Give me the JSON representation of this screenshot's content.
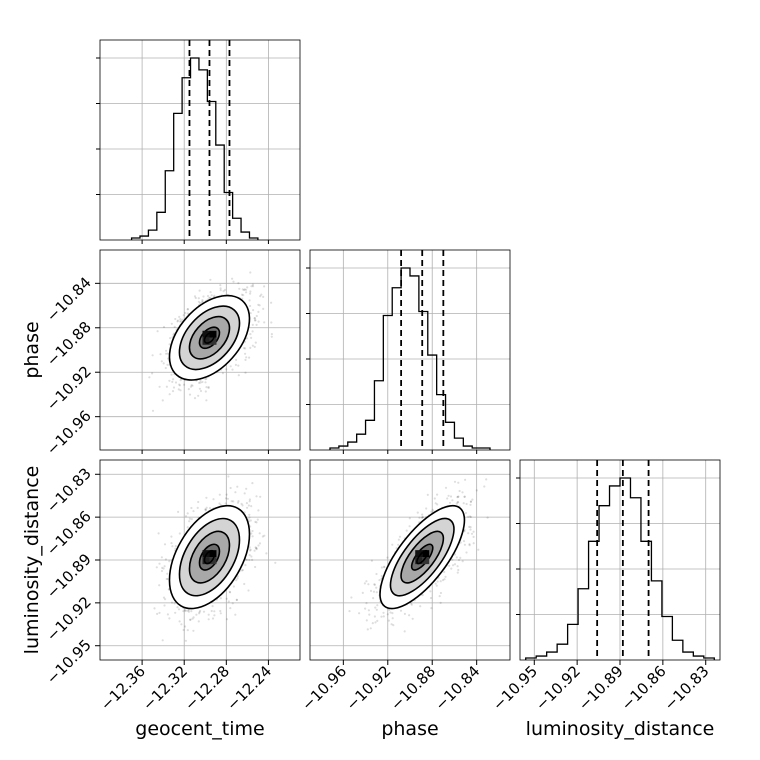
{
  "chart_data": {
    "type": "corner",
    "parameters": [
      "geocent_time",
      "phase",
      "luminosity_distance"
    ],
    "axis_labels": {
      "x": [
        "geocent_time",
        "phase",
        "luminosity_distance"
      ],
      "y": [
        "phase",
        "luminosity_distance"
      ]
    },
    "ranges": {
      "geocent_time": [
        -12.4,
        -12.21
      ],
      "phase": [
        -10.99,
        -10.81
      ],
      "luminosity_distance": [
        -10.96,
        -10.82
      ]
    },
    "ticks": {
      "geocent_time": [
        -12.36,
        -12.32,
        -12.28,
        -12.24
      ],
      "phase": [
        -10.96,
        -10.92,
        -10.88,
        -10.84
      ],
      "luminosity_distance": [
        -10.95,
        -10.92,
        -10.89,
        -10.86,
        -10.83
      ]
    },
    "tick_labels": {
      "geocent_time": [
        "−12.36",
        "−12.32",
        "−12.28",
        "−12.24"
      ],
      "phase": [
        "−10.96",
        "−10.92",
        "−10.88",
        "−10.84"
      ],
      "luminosity_distance": [
        "−10.95",
        "−10.92",
        "−10.89",
        "−10.86",
        "−10.83"
      ]
    },
    "quantiles": {
      "geocent_time": [
        -12.315,
        -12.296,
        -12.277
      ],
      "phase": [
        -10.908,
        -10.889,
        -10.87
      ],
      "luminosity_distance": [
        -10.906,
        -10.888,
        -10.87
      ]
    },
    "histograms": {
      "geocent_time": {
        "range": [
          -12.37,
          -12.25
        ],
        "counts": [
          1,
          2,
          5,
          14,
          35,
          64,
          82,
          92,
          86,
          70,
          48,
          24,
          11,
          4,
          1
        ]
      },
      "phase": {
        "range": [
          -10.972,
          -10.828
        ],
        "counts": [
          1,
          2,
          4,
          8,
          15,
          35,
          68,
          82,
          92,
          88,
          70,
          48,
          28,
          14,
          6,
          2,
          1,
          1
        ]
      },
      "luminosity_distance": {
        "range": [
          -10.956,
          -10.824
        ],
        "counts": [
          1,
          2,
          4,
          8,
          18,
          36,
          60,
          78,
          88,
          92,
          82,
          60,
          40,
          22,
          10,
          4,
          2,
          1
        ]
      }
    },
    "centers": {
      "geocent_time": -12.296,
      "phase": -10.889,
      "luminosity_distance": -10.888
    },
    "sigmas": {
      "geocent_time": 0.019,
      "phase": 0.019,
      "luminosity_distance": 0.018
    },
    "correlations": {
      "phase_vs_geocent_time": 0.45,
      "luminosity_distance_vs_geocent_time": 0.45,
      "luminosity_distance_vs_phase": 0.72
    },
    "contour_levels_sigma": [
      0.5,
      1.0,
      1.5,
      2.0
    ],
    "grid": true
  }
}
